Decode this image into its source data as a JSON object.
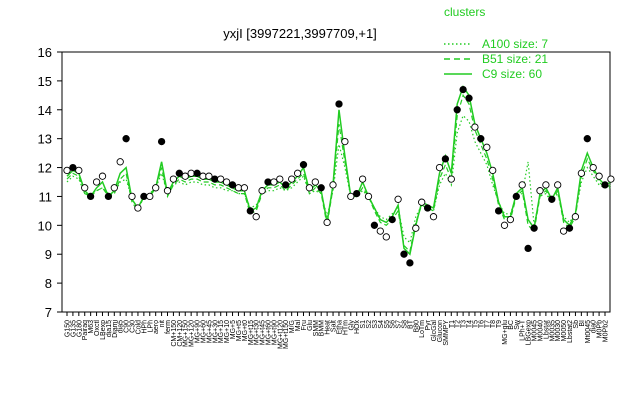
{
  "chart_data": {
    "type": "line",
    "title": "yxjI [3997221,3997709,+1]",
    "xlabel": "",
    "ylabel": "",
    "ylim": [
      7,
      16
    ],
    "yticks": [
      7,
      8,
      9,
      10,
      11,
      12,
      13,
      14,
      15,
      16
    ],
    "grid": false,
    "legend": {
      "title": "clusters",
      "placement": "top-right",
      "color": "#22cc22",
      "entries": [
        {
          "label": "A100 size: 7",
          "style": "dotted"
        },
        {
          "label": "B51 size: 21",
          "style": "dashed"
        },
        {
          "label": "C9 size: 60",
          "style": "solid"
        }
      ]
    },
    "x_tick_labels": [
      "G150",
      "G135",
      "G180",
      "Pairaq",
      "M63",
      "Oxctl",
      "LBexp",
      "dia15",
      "Diami",
      "dia5",
      "C90",
      "C30",
      "Cold",
      "HPh",
      "LPh",
      "aero",
      "nit",
      "ferm",
      "CM+150",
      "CM+120",
      "MG+150",
      "MG+120",
      "MG+90",
      "MG+60",
      "MG+45",
      "MG+30",
      "MG+15",
      "MG+10",
      "MG+5",
      "MG+t5",
      "MG+t0",
      "MG+t15",
      "MG+t30",
      "MG+t45",
      "MG+t60",
      "MG+t90",
      "MG+t120",
      "MG+t150",
      "M/G",
      "Mal",
      "Fru",
      "Glu",
      "SMM",
      "BMM",
      "Heat",
      "Salt",
      "Etha",
      "HTm",
      "Gly",
      "HOx",
      "S1",
      "S2",
      "S3",
      "S4",
      "S5",
      "S6",
      "S7",
      "S8",
      "BT",
      "B80",
      "LoTm",
      "Pyr",
      "GlcGal",
      "Glucon",
      "SMMPY",
      "T1",
      "T2",
      "T3",
      "T4",
      "T5",
      "T6",
      "T7",
      "T8",
      "T9",
      "MG+glu",
      "BC",
      "Sw",
      "LPh+T",
      "LBGexp",
      "M0045",
      "M0040",
      "Lbstat",
      "M0035",
      "M0030",
      "M0050",
      "Lbstat2",
      "Sb",
      "BI",
      "Mt0045",
      "dia0",
      "M0Pb",
      "M0Pb2"
    ],
    "x_tick_display": [
      "G150",
      "G135",
      "G180",
      "Pairaq",
      "M63",
      "Oxctl",
      "LBexp",
      "dia15",
      "Diami",
      "dia5",
      "C90",
      "C30",
      "Cold",
      "HPh",
      "LPh",
      "aero",
      "nit",
      "ferm",
      "CM+150",
      "CM+120",
      "MG+150",
      "MG+120",
      "MG+90",
      "MG+60",
      "MG+45",
      "MG+30",
      "MG+15",
      "MG+10",
      "MG+5",
      "MG+t5",
      "MG+t0",
      "MG+t15",
      "MG+t30",
      "MG+t45",
      "MG+t60",
      "MG+t90",
      "MG+t120",
      "MG+t150",
      "M/G",
      "Mal",
      "Fru",
      "Glu",
      "SMM",
      "BMM",
      "Heat",
      "Salt",
      "Etha",
      "HTm",
      "Gly",
      "HOx",
      "S1",
      "S2",
      "S3",
      "S4",
      "S5",
      "S6",
      "S7",
      "S8",
      "BT",
      "B80",
      "LoTm",
      "Pyr",
      "GlcGal",
      "Glucon",
      "SMMPY",
      "T1",
      "T2",
      "T3",
      "T4",
      "T5",
      "T6",
      "T7",
      "T8",
      "T9",
      "MG+glu",
      "BC",
      "Sw",
      "LPh+T",
      "LBGexp",
      "M0045",
      "M0040",
      "Lbstat",
      "M0035",
      "M0030",
      "M0050",
      "Lbstat2",
      "Sb",
      "BI",
      "Mt0045",
      "dia0",
      "M0Pb",
      "M0Pb2"
    ],
    "series": [
      {
        "name": "C9 size: 60",
        "color": "#22cc22",
        "values": [
          11.7,
          11.9,
          11.8,
          11.2,
          11.0,
          11.3,
          11.5,
          11.0,
          11.2,
          11.8,
          12.0,
          10.9,
          10.6,
          11.0,
          11.0,
          11.3,
          12.2,
          11.1,
          11.5,
          11.7,
          11.6,
          11.7,
          11.7,
          11.6,
          11.6,
          11.5,
          11.5,
          11.4,
          11.3,
          11.2,
          11.2,
          10.5,
          10.6,
          11.2,
          11.4,
          11.4,
          11.5,
          11.3,
          11.5,
          11.7,
          12.0,
          11.2,
          11.4,
          11.2,
          10.1,
          11.4,
          14.0,
          12.4,
          11.0,
          11.0,
          11.5,
          11.0,
          10.6,
          10.2,
          10.1,
          10.3,
          10.7,
          9.2,
          9.0,
          10.0,
          10.8,
          10.7,
          10.6,
          11.8,
          12.4,
          11.8,
          14.2,
          14.8,
          14.5,
          13.5,
          13.0,
          12.5,
          11.8,
          10.8,
          10.3,
          10.3,
          11.1,
          11.3,
          10.2,
          9.9,
          11.1,
          11.3,
          10.9,
          11.3,
          10.2,
          10.0,
          10.4,
          11.9,
          12.5,
          12.0,
          11.6,
          11.4,
          11.5
        ],
        "points": [
          11.9,
          12.0,
          11.9,
          11.3,
          11.0,
          11.5,
          11.7,
          11.0,
          11.3,
          12.2,
          13.0,
          11.0,
          10.6,
          11.0,
          11.0,
          11.3,
          12.9,
          11.2,
          11.6,
          11.8,
          11.7,
          11.8,
          11.8,
          11.7,
          11.7,
          11.6,
          11.6,
          11.5,
          11.4,
          11.3,
          11.3,
          10.5,
          10.3,
          11.2,
          11.5,
          11.5,
          11.6,
          11.4,
          11.6,
          11.8,
          12.1,
          11.3,
          11.5,
          11.3,
          10.1,
          11.4,
          14.2,
          12.9,
          11.0,
          11.1,
          11.6,
          11.0,
          10.0,
          9.8,
          9.6,
          10.2,
          10.9,
          9.0,
          8.7,
          9.9,
          10.8,
          10.6,
          10.3,
          12.0,
          12.3,
          11.6,
          14.0,
          14.7,
          14.4,
          13.4,
          13.0,
          12.7,
          11.9,
          10.5,
          10.0,
          10.2,
          11.0,
          11.4,
          9.2,
          9.9,
          11.2,
          11.4,
          10.9,
          11.4,
          9.8,
          9.9,
          10.3,
          11.8,
          13.0,
          12.0,
          11.7,
          11.4,
          11.6
        ]
      },
      {
        "name": "B51 size: 21",
        "color": "#22cc22",
        "values": [
          11.6,
          11.8,
          11.7,
          11.1,
          11.0,
          11.2,
          11.3,
          11.0,
          11.1,
          11.6,
          11.8,
          10.8,
          10.5,
          11.0,
          11.1,
          11.3,
          12.0,
          11.0,
          11.4,
          11.6,
          11.5,
          11.6,
          11.6,
          11.5,
          11.5,
          11.4,
          11.4,
          11.3,
          11.2,
          11.1,
          11.1,
          10.4,
          10.5,
          11.1,
          11.3,
          11.3,
          11.4,
          11.2,
          11.4,
          11.6,
          11.8,
          11.1,
          11.3,
          11.1,
          10.0,
          11.3,
          13.5,
          12.2,
          11.0,
          11.0,
          11.3,
          11.0,
          10.5,
          10.1,
          10.0,
          10.2,
          10.5,
          9.3,
          9.1,
          10.1,
          10.7,
          10.6,
          10.5,
          11.6,
          12.1,
          11.6,
          13.8,
          14.5,
          14.2,
          13.3,
          12.8,
          12.3,
          11.6,
          10.7,
          10.2,
          10.2,
          11.0,
          11.2,
          10.0,
          9.8,
          11.0,
          11.2,
          10.8,
          11.2,
          10.1,
          9.9,
          10.3,
          11.7,
          12.3,
          11.9,
          11.5,
          11.3,
          11.4
        ]
      },
      {
        "name": "A100 size: 7",
        "color": "#22cc22",
        "values": [
          11.5,
          11.7,
          11.6,
          11.1,
          11.1,
          11.2,
          11.3,
          11.1,
          11.1,
          11.5,
          11.6,
          10.9,
          10.6,
          11.0,
          11.1,
          11.3,
          11.8,
          11.1,
          11.4,
          11.5,
          11.4,
          11.5,
          11.5,
          11.4,
          11.4,
          11.3,
          11.3,
          11.2,
          11.2,
          11.1,
          11.1,
          10.6,
          10.7,
          11.1,
          11.2,
          11.2,
          11.3,
          11.2,
          11.3,
          11.5,
          11.7,
          11.1,
          11.2,
          11.1,
          10.3,
          11.2,
          12.8,
          12.0,
          11.0,
          11.0,
          11.2,
          11.0,
          10.6,
          10.3,
          10.2,
          10.4,
          10.6,
          9.6,
          9.4,
          10.3,
          10.7,
          10.6,
          10.5,
          11.4,
          11.8,
          11.4,
          13.2,
          13.8,
          13.6,
          12.9,
          12.5,
          12.1,
          11.4,
          10.8,
          10.4,
          10.4,
          11.0,
          11.1,
          12.2,
          10.0,
          11.0,
          11.1,
          10.8,
          11.1,
          10.3,
          10.1,
          10.4,
          11.5,
          12.0,
          11.7,
          11.4,
          11.3,
          11.3
        ]
      }
    ]
  }
}
